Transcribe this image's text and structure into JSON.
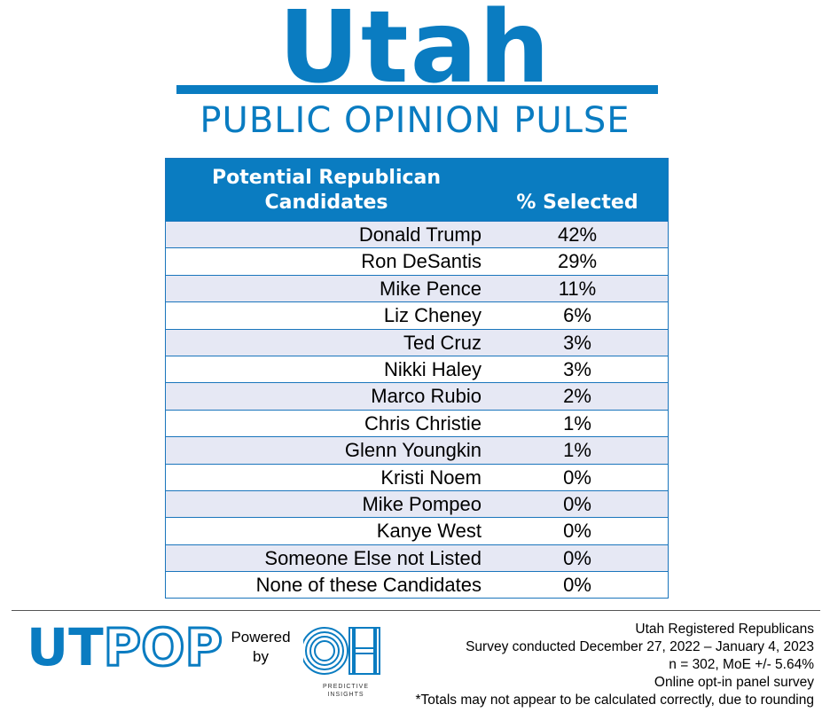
{
  "header": {
    "title": "Utah",
    "subtitle": "PUBLIC OPINION PULSE"
  },
  "colors": {
    "brand_blue": "#0a7cc1",
    "row_alt": "#e6e8f4",
    "border": "#1a75bc"
  },
  "chart_data": {
    "type": "table",
    "columns": [
      "Potential Republican Candidates",
      "% Selected"
    ],
    "rows": [
      {
        "name": "Donald Trump",
        "pct": "42%"
      },
      {
        "name": "Ron DeSantis",
        "pct": "29%"
      },
      {
        "name": "Mike Pence",
        "pct": "11%"
      },
      {
        "name": "Liz Cheney",
        "pct": "6%"
      },
      {
        "name": "Ted Cruz",
        "pct": "3%"
      },
      {
        "name": "Nikki Haley",
        "pct": "3%"
      },
      {
        "name": "Marco Rubio",
        "pct": "2%"
      },
      {
        "name": "Chris Christie",
        "pct": "1%"
      },
      {
        "name": "Glenn Youngkin",
        "pct": "1%"
      },
      {
        "name": "Kristi Noem",
        "pct": "0%"
      },
      {
        "name": "Mike Pompeo",
        "pct": "0%"
      },
      {
        "name": "Kanye West",
        "pct": "0%"
      },
      {
        "name": "Someone Else not Listed",
        "pct": "0%"
      },
      {
        "name": "None of these Candidates",
        "pct": "0%"
      }
    ]
  },
  "footer": {
    "logo_ut": "UT",
    "logo_pop": "POP",
    "powered_line1": "Powered",
    "powered_line2": "by",
    "oh_logo": "OH",
    "oh_caption_1": "PREDICTIVE",
    "oh_caption_2": "INSIGHTS",
    "notes": [
      "Utah Registered Republicans",
      "Survey conducted December 27, 2022 – January 4, 2023",
      "n = 302, MoE +/- 5.64%",
      "Online opt-in panel survey",
      "*Totals may not appear to be calculated correctly, due to rounding"
    ]
  }
}
